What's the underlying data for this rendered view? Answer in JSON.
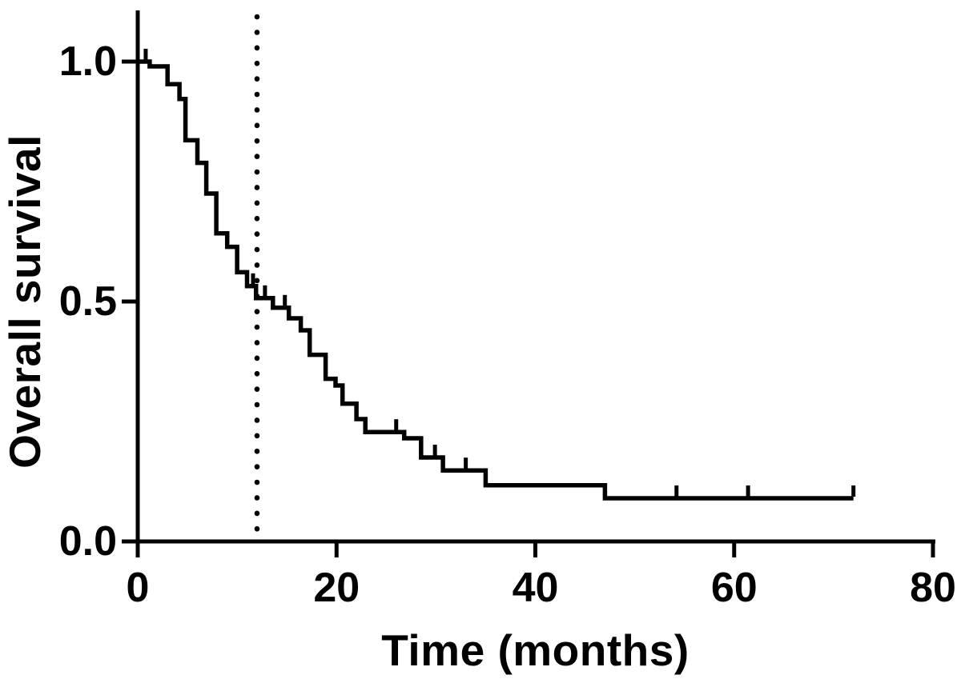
{
  "figure": {
    "background": "#ffffff",
    "ink_color": "#000000"
  },
  "chart_data": {
    "type": "line",
    "chart_kind": "kaplan-meier-survival-step-curve",
    "title": "",
    "xlabel": "Time (months)",
    "ylabel": "Overall survival",
    "xlim": [
      0,
      80
    ],
    "ylim": [
      0,
      1.1
    ],
    "x_ticks": [
      0,
      20,
      40,
      60,
      80
    ],
    "x_tick_labels": [
      "0",
      "20",
      "40",
      "60",
      "80"
    ],
    "y_ticks": [
      0.0,
      0.5,
      1.0
    ],
    "y_tick_labels": [
      "0.0",
      "0.5",
      "1.0"
    ],
    "grid": false,
    "legend_position": "none",
    "reference_line": {
      "style": "dotted",
      "orientation": "vertical",
      "x": 12
    },
    "series": [
      {
        "name": "Overall survival",
        "color": "#000000",
        "line_style": "step-post",
        "steps_time_survival": [
          [
            0,
            1.0
          ],
          [
            1.2,
            0.99
          ],
          [
            3.0,
            0.953
          ],
          [
            4.2,
            0.922
          ],
          [
            4.8,
            0.836
          ],
          [
            6.0,
            0.789
          ],
          [
            6.9,
            0.725
          ],
          [
            7.9,
            0.642
          ],
          [
            9.0,
            0.614
          ],
          [
            10.0,
            0.561
          ],
          [
            11.0,
            0.532
          ],
          [
            11.9,
            0.507
          ],
          [
            13.6,
            0.487
          ],
          [
            15.2,
            0.465
          ],
          [
            16.4,
            0.44
          ],
          [
            17.3,
            0.389
          ],
          [
            18.9,
            0.339
          ],
          [
            19.9,
            0.325
          ],
          [
            20.6,
            0.287
          ],
          [
            22.0,
            0.255
          ],
          [
            22.9,
            0.228
          ],
          [
            26.8,
            0.215
          ],
          [
            28.5,
            0.175
          ],
          [
            30.7,
            0.148
          ],
          [
            35.0,
            0.117
          ],
          [
            47.0,
            0.09
          ]
        ],
        "end_time": 72,
        "end_censored": true,
        "censor_marks_time_survival": [
          [
            0.8,
            1.0
          ],
          [
            11.6,
            0.532
          ],
          [
            12.8,
            0.507
          ],
          [
            14.8,
            0.487
          ],
          [
            26.0,
            0.228
          ],
          [
            29.9,
            0.175
          ],
          [
            33.0,
            0.148
          ],
          [
            54.2,
            0.09
          ],
          [
            61.4,
            0.09
          ],
          [
            72.0,
            0.09
          ]
        ]
      }
    ]
  }
}
